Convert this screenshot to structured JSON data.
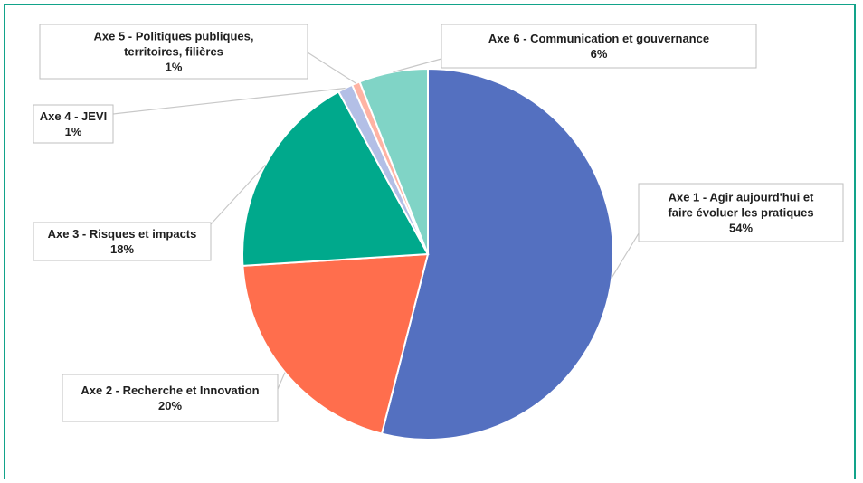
{
  "chart_data": {
    "type": "pie",
    "title": "",
    "slices": [
      {
        "label": "Axe 1 - Agir aujourd'hui et faire évoluer les pratiques",
        "lines": [
          "Axe 1 - Agir aujourd'hui et",
          "faire évoluer les pratiques"
        ],
        "value": 54,
        "value_label": "54%",
        "color": "#5470c0"
      },
      {
        "label": "Axe 2 - Recherche et Innovation",
        "lines": [
          "Axe 2 - Recherche et Innovation"
        ],
        "value": 20,
        "value_label": "20%",
        "color": "#ff6e4d"
      },
      {
        "label": "Axe 3 - Risques et impacts",
        "lines": [
          "Axe 3 - Risques et impacts"
        ],
        "value": 18,
        "value_label": "18%",
        "color": "#00a98c"
      },
      {
        "label": "Axe 4 - JEVI",
        "lines": [
          "Axe 4 - JEVI"
        ],
        "value": 1.3,
        "value_label": "1%",
        "color": "#b3bfe6"
      },
      {
        "label": "Axe 5 - Politiques publiques, territoires, filières",
        "lines": [
          "Axe 5 - Politiques publiques,",
          "territoires, filières"
        ],
        "value": 0.7,
        "value_label": "1%",
        "color": "#ffb3a3"
      },
      {
        "label": "Axe 6 - Communication et gouvernance",
        "lines": [
          "Axe 6 - Communication et gouvernance"
        ],
        "value": 6,
        "value_label": "6%",
        "color": "#80d4c6"
      }
    ],
    "start_angle_deg": 0,
    "direction": "clockwise",
    "legend": "none",
    "data_labels": "callouts"
  }
}
